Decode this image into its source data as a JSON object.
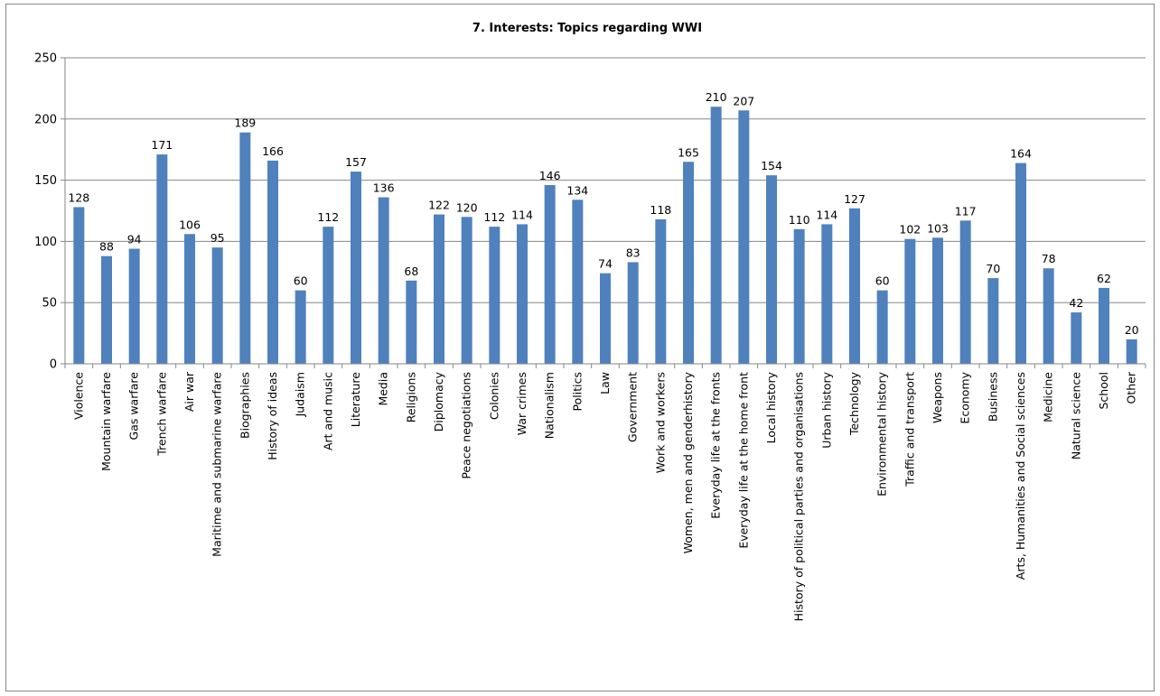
{
  "chart_data": {
    "type": "bar",
    "title": "7. Interests: Topics regarding WWI",
    "xlabel": "",
    "ylabel": "",
    "ylim": [
      0,
      250
    ],
    "yticks": [
      0,
      50,
      100,
      150,
      200,
      250
    ],
    "grid": true,
    "legend": "none",
    "bar_color": "#4f81bd",
    "categories": [
      "Violence",
      "Mountain warfare",
      "Gas warfare",
      "Trench warfare",
      "Air war",
      "Maritime and submarine warfare",
      "Biographies",
      "History of ideas",
      "Judaism",
      "Art and music",
      "Literature",
      "Media",
      "Religions",
      "Diplomacy",
      "Peace negotiations",
      "Colonies",
      "War crimes",
      "Nationalism",
      "Politics",
      "Law",
      "Government",
      "Work and workers",
      "Women, men and genderhistory",
      "Everyday life at the fronts",
      "Everyday life at the home front",
      "Local history",
      "History of political parties and organisations",
      "Urban history",
      "Technology",
      "Environmental history",
      "Traffic and transport",
      "Weapons",
      "Economy",
      "Business",
      "Arts, Humanities and Social sciences",
      "Medicine",
      "Natural science",
      "School",
      "Other"
    ],
    "values": [
      128,
      88,
      94,
      171,
      106,
      95,
      189,
      166,
      60,
      112,
      157,
      136,
      68,
      122,
      120,
      112,
      114,
      146,
      134,
      74,
      83,
      118,
      165,
      210,
      207,
      154,
      110,
      114,
      127,
      60,
      102,
      103,
      117,
      70,
      164,
      78,
      42,
      62,
      20
    ]
  }
}
